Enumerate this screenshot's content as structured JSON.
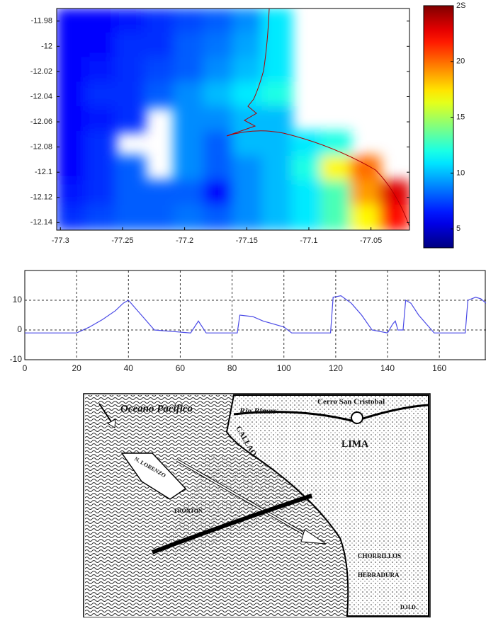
{
  "chart_data": [
    {
      "type": "heatmap",
      "values": [
        [
          6,
          6,
          6.5,
          7,
          7.5,
          8,
          9,
          11,
          null,
          null,
          null,
          null
        ],
        [
          6,
          6,
          7,
          7,
          8,
          8.5,
          9.5,
          11,
          null,
          null,
          null,
          null
        ],
        [
          6,
          6.5,
          7,
          7.5,
          8,
          9,
          10,
          11,
          null,
          null,
          null,
          null
        ],
        [
          6,
          7,
          7,
          8,
          9,
          10,
          11,
          12,
          null,
          null,
          null,
          null
        ],
        [
          6,
          6.5,
          7,
          null,
          9,
          9,
          10,
          10,
          null,
          null,
          null,
          null
        ],
        [
          6,
          7,
          null,
          null,
          9,
          8,
          10,
          10,
          11,
          12,
          null,
          null
        ],
        [
          6,
          7,
          8,
          null,
          9,
          8,
          9,
          10,
          12,
          17,
          20,
          null
        ],
        [
          6.5,
          7,
          8,
          8,
          8,
          6,
          9,
          10,
          11,
          13,
          19,
          23
        ],
        [
          7,
          7.5,
          8,
          8,
          8.5,
          8,
          9,
          10,
          11,
          13,
          17,
          22
        ]
      ],
      "xlim": [
        -77.303,
        -77.019
      ],
      "xticks": [
        -77.3,
        -77.25,
        -77.2,
        -77.15,
        -77.1,
        -77.05
      ],
      "ylim": [
        -12.146,
        -11.97
      ],
      "yticks": [
        -11.98,
        -12,
        -12.02,
        -12.04,
        -12.06,
        -12.08,
        -12.1,
        -12.12,
        -12.14
      ],
      "clim": [
        3.3,
        25
      ],
      "cticks": [
        5,
        10,
        15,
        20,
        {
          "value": 25,
          "label": "2S"
        }
      ],
      "colormap": "jet",
      "coast_color": "#b00000"
    },
    {
      "type": "line",
      "x": [
        0,
        20,
        25,
        30,
        35,
        38,
        40,
        43,
        47,
        50,
        64,
        67,
        70,
        82,
        83,
        88,
        92,
        96,
        100,
        103,
        118,
        119,
        122,
        126,
        130,
        134,
        140,
        142,
        143,
        144,
        146,
        147,
        149,
        152,
        155,
        158,
        170,
        171,
        174,
        176,
        178
      ],
      "values": [
        -1,
        -1,
        1,
        3.5,
        6.5,
        9,
        10,
        7,
        3,
        0,
        -1,
        3,
        -1,
        -1,
        5,
        4.5,
        3,
        2,
        1,
        -1,
        -1,
        11,
        11.5,
        9,
        5,
        0,
        -1,
        2,
        3,
        0,
        0,
        10,
        9,
        5,
        2,
        -1,
        -1,
        10,
        11,
        10.5,
        9
      ],
      "color": "#4a4ae6",
      "xlim": [
        0,
        178
      ],
      "xticks": [
        0,
        20,
        40,
        60,
        80,
        100,
        120,
        140,
        160
      ],
      "ylim": [
        -10,
        20
      ],
      "yticks": [
        -10,
        0,
        10
      ],
      "grid": true
    }
  ],
  "illustration": {
    "labels": [
      "Oceano Pacifico",
      "Rio Rimac",
      "Cerro San Cristobal",
      "CALLAO",
      "LIMA",
      "N. LORENZO",
      "FRONTON",
      "CHORRILLOS",
      "HERRADURA",
      "D.H.D."
    ]
  }
}
